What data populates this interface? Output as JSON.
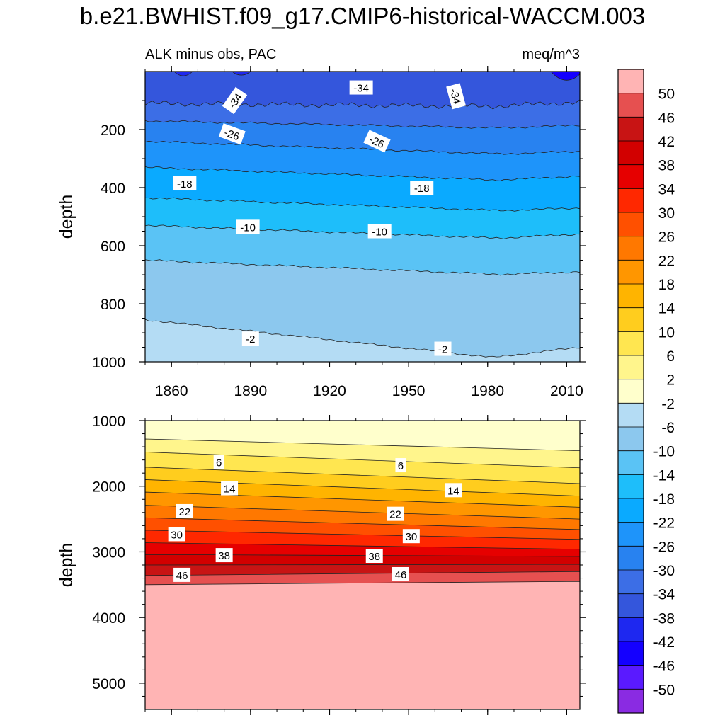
{
  "title": "b.e21.BWHIST.f09_g17.CMIP6-historical-WACCM.003",
  "chart_data": {
    "type": "contour",
    "left_label": "ALK minus obs, PAC",
    "right_label": "meq/m^3",
    "ylabel": "depth",
    "xlim": [
      1850,
      2015
    ],
    "x_ticks": [
      1860,
      1890,
      1920,
      1950,
      1980,
      2010
    ],
    "x_tick_labels": [
      "1860",
      "1890",
      "1920",
      "1950",
      "1980",
      "2010"
    ],
    "colorbar": {
      "levels": [
        -50,
        -46,
        -42,
        -38,
        -34,
        -30,
        -26,
        -22,
        -18,
        -14,
        -10,
        -6,
        -2,
        2,
        6,
        10,
        14,
        18,
        22,
        26,
        30,
        34,
        38,
        42,
        46,
        50
      ],
      "level_labels": [
        "-50",
        "-46",
        "-42",
        "-38",
        "-34",
        "-30",
        "-26",
        "-22",
        "-18",
        "-14",
        "-10",
        "-6",
        "-2",
        "2",
        "6",
        "10",
        "14",
        "18",
        "22",
        "26",
        "30",
        "34",
        "38",
        "42",
        "46",
        "50"
      ],
      "colors": [
        "#8a2be2",
        "#5a1aff",
        "#1400ff",
        "#1e28f0",
        "#3456dc",
        "#3c6ee6",
        "#2882f0",
        "#1e94fa",
        "#0aaaff",
        "#1ebefa",
        "#5ac3f5",
        "#8cc8ee",
        "#b4dcf4",
        "#ffffcc",
        "#fff58c",
        "#ffe650",
        "#ffcd1e",
        "#ffb400",
        "#ff9600",
        "#ff7800",
        "#ff5000",
        "#ff2800",
        "#e60000",
        "#d20000",
        "#c81414",
        "#e65050",
        "#ffb4b4"
      ]
    },
    "panels": [
      {
        "name": "upper",
        "ylim": [
          0,
          1000
        ],
        "y_ticks": [
          200,
          400,
          600,
          800,
          1000
        ],
        "y_tick_labels": [
          "200",
          "400",
          "600",
          "800",
          "1000"
        ],
        "contour_labels": [
          {
            "text": "-34",
            "x": 1884,
            "y": 100,
            "angle": -55
          },
          {
            "text": "-34",
            "x": 1932,
            "y": 55,
            "angle": 0
          },
          {
            "text": "-34",
            "x": 1968,
            "y": 85,
            "angle": 75
          },
          {
            "text": "-26",
            "x": 1883,
            "y": 215,
            "angle": 20
          },
          {
            "text": "-26",
            "x": 1938,
            "y": 240,
            "angle": 25
          },
          {
            "text": "-18",
            "x": 1865,
            "y": 385,
            "angle": 0
          },
          {
            "text": "-18",
            "x": 1955,
            "y": 400,
            "angle": 0
          },
          {
            "text": "-10",
            "x": 1889,
            "y": 535,
            "angle": 0
          },
          {
            "text": "-10",
            "x": 1939,
            "y": 550,
            "angle": 0
          },
          {
            "text": "-2",
            "x": 1890,
            "y": 920,
            "angle": 0
          },
          {
            "text": "-2",
            "x": 1963,
            "y": 955,
            "angle": 0
          }
        ]
      },
      {
        "name": "lower",
        "ylim": [
          1000,
          5400
        ],
        "y_ticks": [
          1000,
          2000,
          3000,
          4000,
          5000
        ],
        "y_tick_labels": [
          "1000",
          "2000",
          "3000",
          "4000",
          "5000"
        ],
        "contour_labels": [
          {
            "text": "6",
            "x": 1878,
            "y": 1630,
            "angle": 0
          },
          {
            "text": "6",
            "x": 1947,
            "y": 1680,
            "angle": 0
          },
          {
            "text": "14",
            "x": 1882,
            "y": 2030,
            "angle": 0
          },
          {
            "text": "14",
            "x": 1967,
            "y": 2060,
            "angle": 0
          },
          {
            "text": "22",
            "x": 1865,
            "y": 2380,
            "angle": 0
          },
          {
            "text": "22",
            "x": 1945,
            "y": 2420,
            "angle": 0
          },
          {
            "text": "30",
            "x": 1862,
            "y": 2730,
            "angle": 0
          },
          {
            "text": "30",
            "x": 1951,
            "y": 2760,
            "angle": 0
          },
          {
            "text": "38",
            "x": 1880,
            "y": 3050,
            "angle": 0
          },
          {
            "text": "38",
            "x": 1937,
            "y": 3060,
            "angle": 0
          },
          {
            "text": "46",
            "x": 1864,
            "y": 3350,
            "angle": 0
          },
          {
            "text": "46",
            "x": 1947,
            "y": 3340,
            "angle": 0
          }
        ]
      }
    ]
  }
}
